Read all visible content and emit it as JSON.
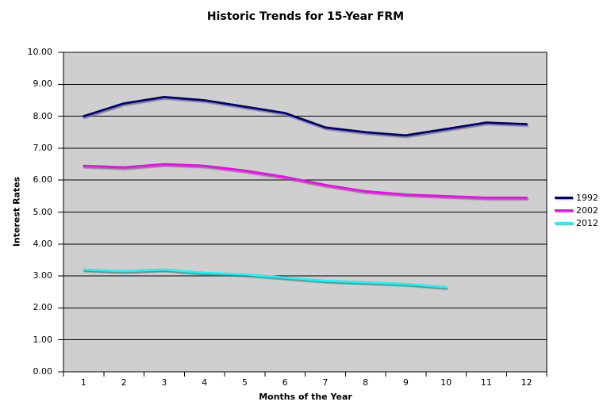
{
  "chart_data": {
    "type": "line",
    "title": "Historic Trends for 15-Year FRM",
    "xlabel": "Months of the Year",
    "ylabel": "Interest Rates",
    "categories": [
      "1",
      "2",
      "3",
      "4",
      "5",
      "6",
      "7",
      "8",
      "9",
      "10",
      "11",
      "12"
    ],
    "series": [
      {
        "name": "1992",
        "color": "#000080",
        "values": [
          8.0,
          8.4,
          8.6,
          8.5,
          8.3,
          8.1,
          7.65,
          7.5,
          7.4,
          7.6,
          7.8,
          7.75
        ]
      },
      {
        "name": "2002",
        "color": "#FF00FF",
        "values": [
          6.45,
          6.4,
          6.5,
          6.45,
          6.3,
          6.1,
          5.85,
          5.65,
          5.55,
          5.5,
          5.45,
          5.45
        ]
      },
      {
        "name": "2012",
        "color": "#00FFFF",
        "values": [
          3.2,
          3.15,
          3.2,
          3.1,
          3.05,
          2.95,
          2.85,
          2.8,
          2.75,
          2.65,
          null,
          null
        ]
      }
    ],
    "ylim": [
      0,
      10
    ],
    "ytick_step": 1,
    "ytick_decimals": 2,
    "grid": "horizontal",
    "gridline_color": "#000000",
    "plot_bg": "#CFCFCF",
    "axis_color": "#000000",
    "legend_position": "right"
  }
}
